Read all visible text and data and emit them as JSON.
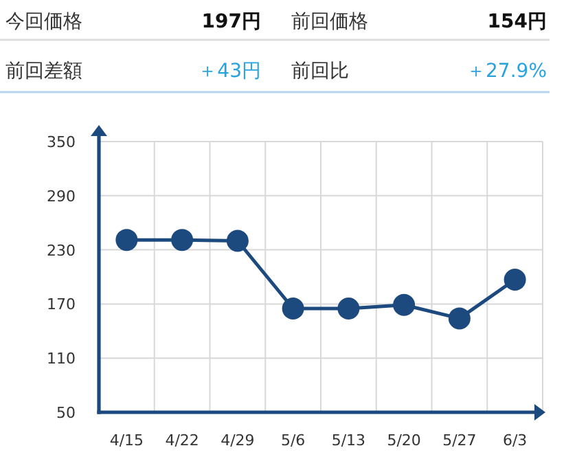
{
  "chart_data": [
    {
      "type": "other",
      "annotations": [
        "今回価格",
        "197円",
        "前回価格",
        "154円",
        "前回差額",
        "＋43円",
        "前回比",
        "＋27.9%"
      ]
    },
    {
      "type": "line",
      "categories": [
        "4/15",
        "4/22",
        "4/29",
        "5/6",
        "5/13",
        "5/20",
        "5/27",
        "6/3"
      ],
      "series": [
        {
          "color": "#1d4a7e",
          "values": [
            241,
            241,
            240,
            165,
            165,
            169,
            154,
            197
          ]
        }
      ],
      "ylim": [
        50,
        350
      ],
      "yticks": [
        50,
        110,
        170,
        230,
        290,
        350
      ],
      "grid": true,
      "marker": "circle",
      "line_style": "solid"
    }
  ]
}
